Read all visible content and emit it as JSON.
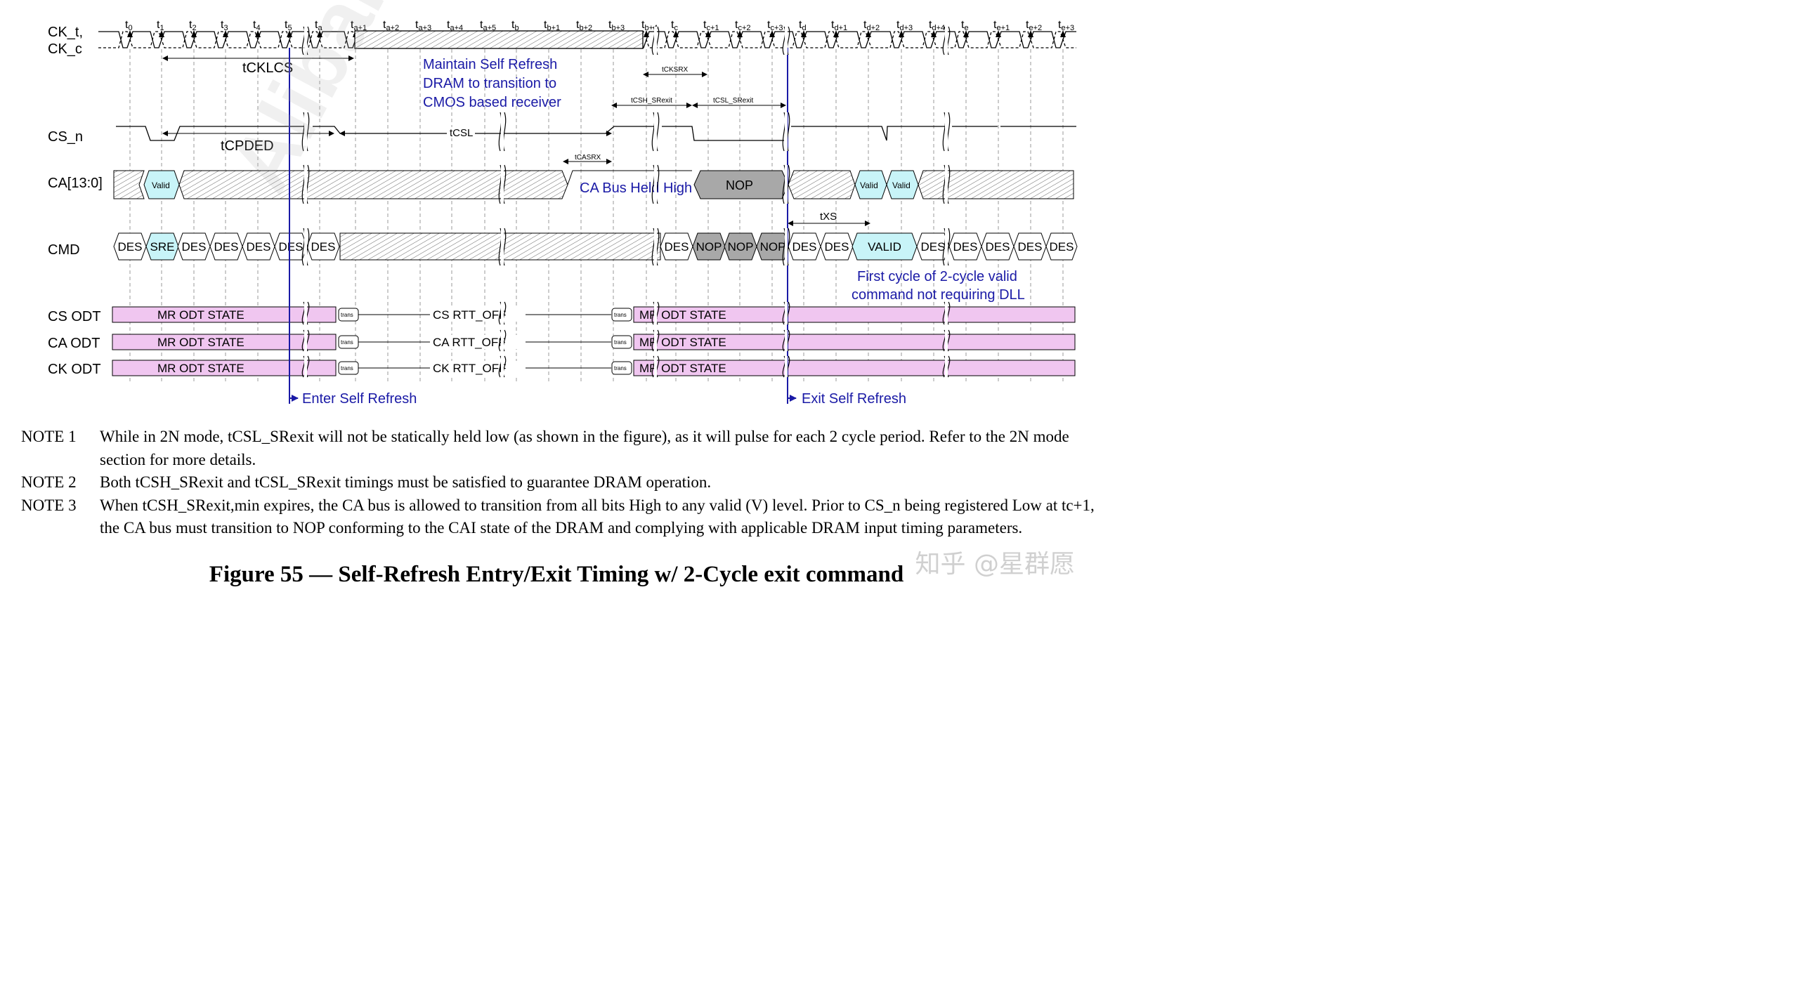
{
  "colors": {
    "accent_blue": "#1a1aa6",
    "odt_pink": "#f0c6f0",
    "valid_cyan": "#c8f4f8",
    "nop_gray": "#a8a8a8"
  },
  "signals": {
    "ck_t": "CK_t,",
    "ck_c": "CK_c",
    "cs_n": "CS_n",
    "ca": "CA[13:0]",
    "cmd": "CMD",
    "cs_odt": "CS ODT",
    "ca_odt": "CA ODT",
    "ck_odt": "CK ODT"
  },
  "ticks": [
    {
      "b": "t",
      "s": "0"
    },
    {
      "b": "t",
      "s": "1"
    },
    {
      "b": "t",
      "s": "2"
    },
    {
      "b": "t",
      "s": "3"
    },
    {
      "b": "t",
      "s": "4"
    },
    {
      "b": "t",
      "s": "5"
    },
    {
      "b": "t",
      "s": "a"
    },
    {
      "b": "t",
      "s": "a+1"
    },
    {
      "b": "t",
      "s": "a+2"
    },
    {
      "b": "t",
      "s": "a+3"
    },
    {
      "b": "t",
      "s": "a+4"
    },
    {
      "b": "t",
      "s": "a+5"
    },
    {
      "b": "t",
      "s": "b"
    },
    {
      "b": "t",
      "s": "b+1"
    },
    {
      "b": "t",
      "s": "b+2"
    },
    {
      "b": "t",
      "s": "b+3"
    },
    {
      "b": "t",
      "s": "b+4"
    },
    {
      "b": "t",
      "s": "c"
    },
    {
      "b": "t",
      "s": "c+1"
    },
    {
      "b": "t",
      "s": "c+2"
    },
    {
      "b": "t",
      "s": "c+3"
    },
    {
      "b": "t",
      "s": "d"
    },
    {
      "b": "t",
      "s": "d+1"
    },
    {
      "b": "t",
      "s": "d+2"
    },
    {
      "b": "t",
      "s": "d+3"
    },
    {
      "b": "t",
      "s": "d+4"
    },
    {
      "b": "t",
      "s": "e"
    },
    {
      "b": "t",
      "s": "e+1"
    },
    {
      "b": "t",
      "s": "e+2"
    },
    {
      "b": "t",
      "s": "e+3"
    }
  ],
  "timing": {
    "tcklcs": "tCKLCS",
    "tcpded": "tCPDED",
    "tcsl": "tCSL",
    "tcksrx": "tCKSRX",
    "tcsh_srexit": "tCSH_SRexit",
    "tcsl_srexit": "tCSL_SRexit",
    "tcasrx": "tCASRX",
    "txs": "tXS"
  },
  "annotations": {
    "maintain_1": "Maintain Self Refresh",
    "maintain_2": "DRAM to transition to",
    "maintain_3": "CMOS based receiver",
    "ca_held_high": "CA Bus Held High",
    "first_cycle_1": "First cycle of 2-cycle valid",
    "first_cycle_2": "command not requiring DLL",
    "enter_sr": "Enter Self Refresh",
    "exit_sr": "Exit Self Refresh"
  },
  "ca_labels": {
    "valid": "Valid",
    "nop": "NOP"
  },
  "cmd": {
    "pre": [
      "DES",
      "SRE",
      "DES",
      "DES",
      "DES",
      "DES",
      "DES"
    ],
    "post_nop": [
      "DES",
      "NOP",
      "NOP",
      "NOP"
    ],
    "post": [
      "DES",
      "DES",
      "VALID",
      "DES",
      "DES",
      "DES",
      "DES",
      "DES"
    ]
  },
  "odt": {
    "state": "MR ODT STATE",
    "trans": "trans",
    "cs_rtt": "CS RTT_OFF",
    "ca_rtt": "CA RTT_OFF",
    "ck_rtt": "CK RTT_OFF"
  },
  "notes": [
    {
      "label": "NOTE 1",
      "text": "While in 2N mode, tCSL_SRexit will not be statically held low (as shown in the figure), as it will pulse for each 2 cycle period. Refer to the 2N mode section for more details."
    },
    {
      "label": "NOTE 2",
      "text": "Both tCSH_SRexit and tCSL_SRexit timings must be satisfied to guarantee DRAM operation."
    },
    {
      "label": "NOTE 3",
      "text": "When tCSH_SRexit,min expires, the CA bus is allowed to transition from all bits High to any valid (V) level. Prior to CS_n being registered Low at tc+1, the CA bus must transition to NOP conforming to the CAI state of the DRAM and complying with applicable DRAM input timing parameters."
    }
  ],
  "caption": "Figure 55 — Self-Refresh Entry/Exit Timing w/ 2-Cycle exit command",
  "watermarks": {
    "alibaba": "Alibaba C",
    "zhihu": "知乎 @星群愿"
  }
}
